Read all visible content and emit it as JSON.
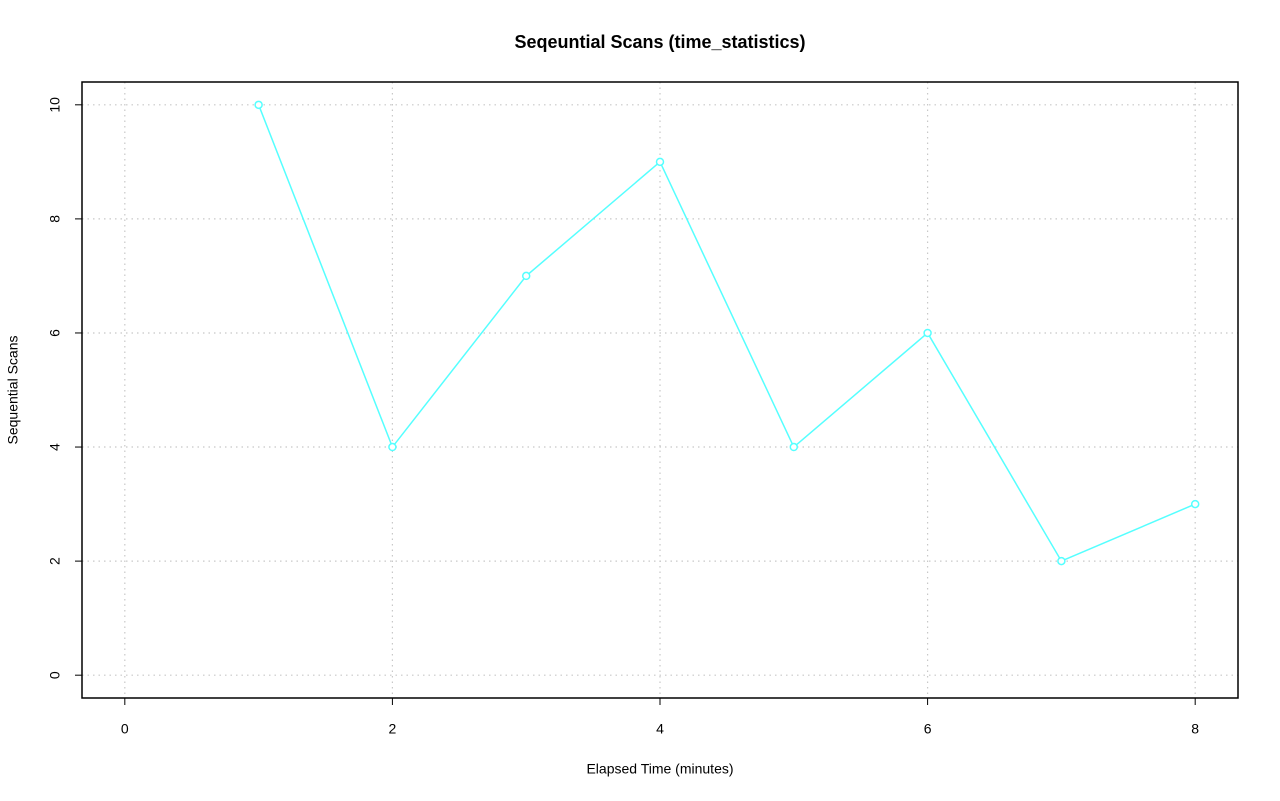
{
  "chart_data": {
    "type": "line",
    "title": "Seqeuntial Scans (time_statistics)",
    "x_label": "Elapsed Time (minutes)",
    "y_label": "Sequential Scans",
    "x": [
      1,
      2,
      3,
      4,
      5,
      6,
      7,
      8
    ],
    "series": [
      {
        "color": "#55ffff",
        "values": [
          10,
          4,
          7,
          9,
          4,
          6,
          2,
          3
        ]
      }
    ],
    "xlim": [
      -0.32,
      8.32
    ],
    "xticks": [
      0,
      2,
      4,
      6,
      8
    ],
    "ylim": [
      -0.4,
      10.4
    ],
    "yticks": [
      0,
      2,
      4,
      6,
      8,
      10
    ],
    "grid": true
  }
}
